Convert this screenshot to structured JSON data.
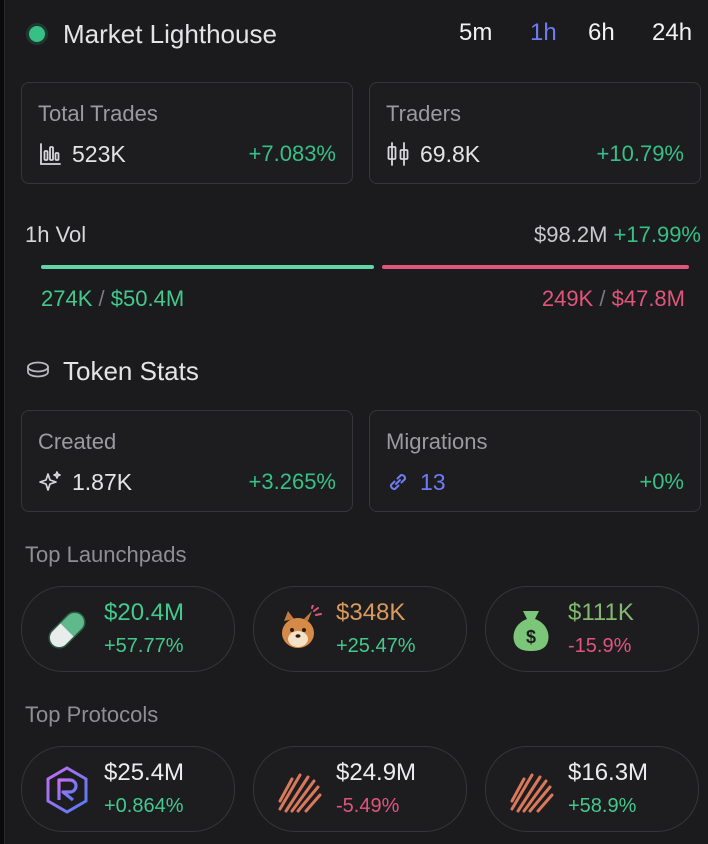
{
  "header": {
    "title": "Market Lighthouse",
    "timeframes": [
      "5m",
      "1h",
      "6h",
      "24h"
    ],
    "active_timeframe": "1h"
  },
  "stats": {
    "total_trades": {
      "label": "Total Trades",
      "value": "523K",
      "change": "+7.083%",
      "icon": "chart-bars-icon"
    },
    "traders": {
      "label": "Traders",
      "value": "69.8K",
      "change": "+10.79%",
      "icon": "candlestick-icon"
    }
  },
  "volume": {
    "label": "1h Vol",
    "total": "$98.2M",
    "change": "+17.99%",
    "buy_count": "274K",
    "buy_value": "$50.4M",
    "sell_count": "249K",
    "sell_value": "$47.8M",
    "separator": "/",
    "buy_share": 0.513
  },
  "token_stats": {
    "title": "Token Stats",
    "created": {
      "label": "Created",
      "value": "1.87K",
      "change": "+3.265%",
      "icon": "sparkle-icon"
    },
    "migrations": {
      "label": "Migrations",
      "value": "13",
      "change": "+0%",
      "icon": "link-icon"
    }
  },
  "launchpads": {
    "title": "Top Launchpads",
    "items": [
      {
        "name": "pill-launchpad",
        "amount": "$20.4M",
        "change": "+57.77%",
        "amount_color": "#43c98d",
        "change_color": "#43c98d",
        "icon": "pill-icon"
      },
      {
        "name": "dog-launchpad",
        "amount": "$348K",
        "change": "+25.47%",
        "amount_color": "#d99a5b",
        "change_color": "#43c98d",
        "icon": "shiba-dog-icon"
      },
      {
        "name": "money-bag-launchpad",
        "amount": "$111K",
        "change": "-15.9%",
        "amount_color": "#83b870",
        "change_color": "#e0557c",
        "icon": "money-bag-icon"
      }
    ]
  },
  "protocols": {
    "title": "Top Protocols",
    "items": [
      {
        "name": "raydium-protocol",
        "amount": "$25.4M",
        "change": "+0.864%",
        "amount_color": "#ececef",
        "change_color": "#43c98d",
        "icon": "raydium-hex-icon"
      },
      {
        "name": "meteora-protocol-1",
        "amount": "$24.9M",
        "change": "-5.49%",
        "amount_color": "#ececef",
        "change_color": "#e0557c",
        "icon": "meteora-stripes-icon"
      },
      {
        "name": "meteora-protocol-2",
        "amount": "$16.3M",
        "change": "+58.9%",
        "amount_color": "#ececef",
        "change_color": "#43c98d",
        "icon": "meteora-stripes-icon"
      }
    ]
  },
  "colors": {
    "accent": "#6d7cf5",
    "positive": "#43c98d",
    "negative": "#e0557c",
    "panel": "#1b1b1d"
  }
}
